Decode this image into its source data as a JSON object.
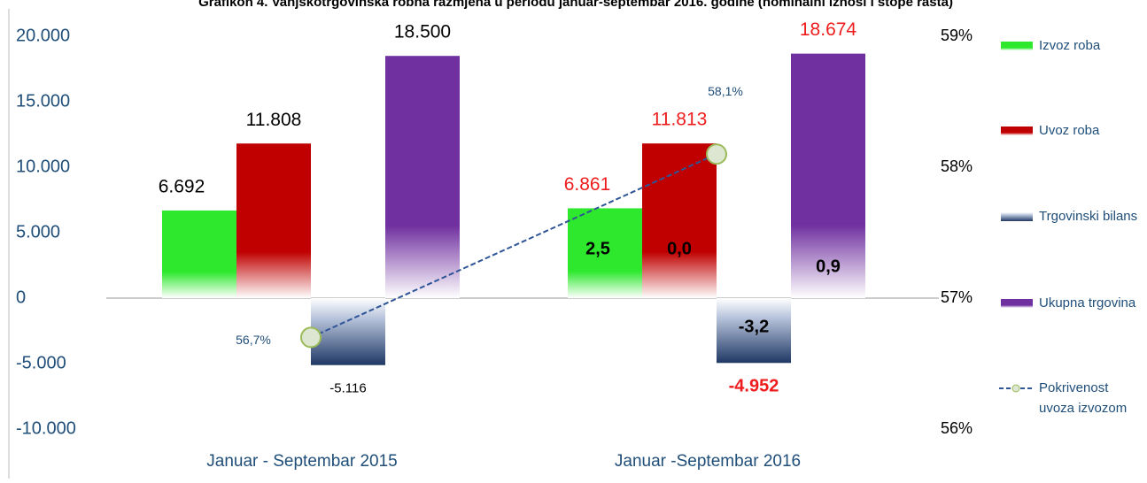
{
  "chart_data": {
    "type": "bar",
    "title": "Grafikon 4.  Vanjskotrgovinska robna razmjena  u periodu  januar-septembar  2016. godine (nominalni iznosi i stope rasta)",
    "categories": [
      "Januar - Septembar 2015",
      "Januar -Septembar 2016"
    ],
    "ylim": [
      -10000,
      20000
    ],
    "yticks": [
      {
        "value": 20000,
        "label": "20.000"
      },
      {
        "value": 15000,
        "label": "15.000"
      },
      {
        "value": 10000,
        "label": "10.000"
      },
      {
        "value": 5000,
        "label": "5.000"
      },
      0,
      {
        "value": -5000,
        "label": "-5.000"
      },
      {
        "value": -10000,
        "label": "-10.000"
      }
    ],
    "y2lim": [
      56,
      59
    ],
    "y2ticks": [
      {
        "value": 59,
        "label": "59%"
      },
      {
        "value": 58,
        "label": "58%"
      },
      {
        "value": 57,
        "label": "57%"
      },
      {
        "value": 56,
        "label": "56%"
      }
    ],
    "label_colors": [
      "#000000",
      "#ee1c1c"
    ],
    "series": [
      {
        "name": "Izvoz roba",
        "color": "#2ee82e",
        "values": [
          6692,
          6861
        ],
        "value_labels": [
          "6.692",
          "6.861"
        ],
        "growth_label": "2,5"
      },
      {
        "name": "Uvoz roba",
        "color": "#c00000",
        "values": [
          11808,
          11813
        ],
        "value_labels": [
          "11.808",
          "11.813"
        ],
        "growth_label": "0,0"
      },
      {
        "name": "Trgovinski bilans",
        "color": "#1f3864",
        "values": [
          -5116,
          -4952
        ],
        "value_labels": [
          "-5.116",
          "-4.952"
        ],
        "growth_label": "-3,2"
      },
      {
        "name": "Ukupna trgovina",
        "color": "#7030a0",
        "values": [
          18500,
          18674
        ],
        "value_labels": [
          "18.500",
          "18.674"
        ],
        "growth_label": "0,9"
      },
      {
        "name": "Pokrivenost uvoza izvozom",
        "type": "line",
        "axis": "y2",
        "color": "#2f5597",
        "values": [
          56.7,
          58.1
        ],
        "value_labels": [
          "56,7%",
          "58,1%"
        ]
      }
    ]
  }
}
